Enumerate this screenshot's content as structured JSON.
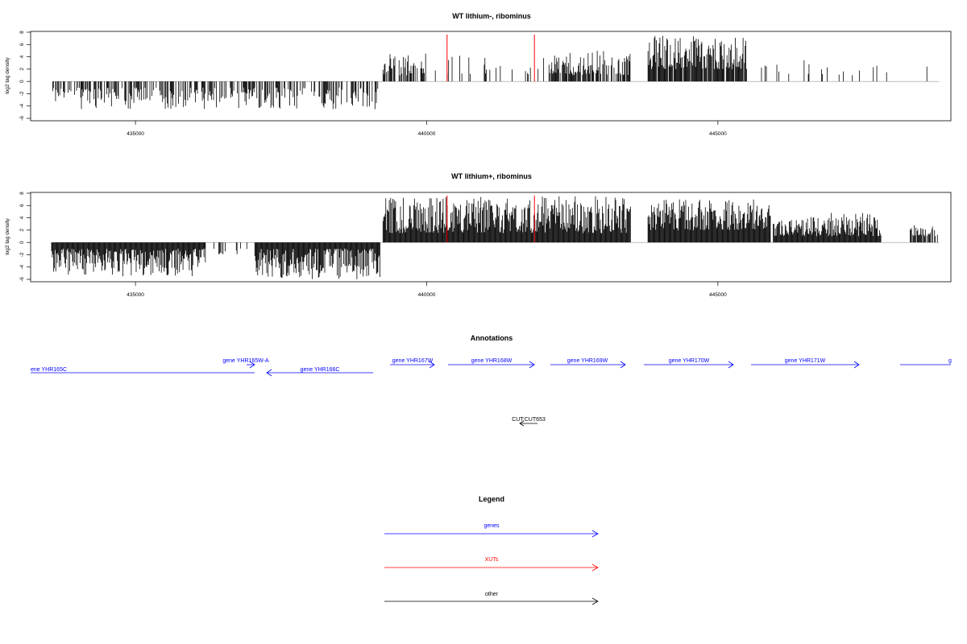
{
  "colors": {
    "gene": "#0000ff",
    "xut": "#ff0000",
    "other": "#000000",
    "baseline": "#999999"
  },
  "chart_data": [
    {
      "type": "bar",
      "title": "WT lithium-, ribominus",
      "ylabel": "log2 tag density",
      "ylim": [
        -6,
        8
      ],
      "yticks": [
        "8",
        "6",
        "4",
        "2",
        "0",
        "-2",
        "-4",
        "-6"
      ],
      "xlim": [
        433200,
        449000
      ],
      "xticks": [
        "435000",
        "440000",
        "445000"
      ],
      "regions": [
        {
          "x": [
            433580,
            439180
          ],
          "sign": -1,
          "low": 1.0,
          "high": 4.5,
          "density": 0.55,
          "seed": 11
        },
        {
          "x": [
            439250,
            440000
          ],
          "sign": 1,
          "low": 1.0,
          "high": 4.6,
          "density": 0.55,
          "seed": 12
        },
        {
          "x": [
            440100,
            442050
          ],
          "sign": 1,
          "low": 1.0,
          "high": 4.5,
          "density": 0.12,
          "seed": 13
        },
        {
          "x": [
            442100,
            443500
          ],
          "sign": 1,
          "low": 1.0,
          "high": 5.0,
          "density": 0.7,
          "seed": 14
        },
        {
          "x": [
            443800,
            445500
          ],
          "sign": 1,
          "low": 2.0,
          "high": 7.5,
          "density": 0.9,
          "seed": 15
        },
        {
          "x": [
            445700,
            447900
          ],
          "sign": 1,
          "low": 1.0,
          "high": 3.6,
          "density": 0.12,
          "seed": 16
        },
        {
          "x": [
            448300,
            448700
          ],
          "sign": 1,
          "low": 2.0,
          "high": 2.6,
          "density": 0.05,
          "seed": 17
        }
      ],
      "highlight_x": [
        440350,
        441850
      ]
    },
    {
      "type": "bar",
      "title": "WT lithium+, ribominus",
      "ylabel": "log2 tag density",
      "ylim": [
        -6,
        8
      ],
      "yticks": [
        "8",
        "6",
        "4",
        "2",
        "0",
        "-2",
        "-4",
        "-6"
      ],
      "xlim": [
        433200,
        449000
      ],
      "xticks": [
        "435000",
        "440000",
        "445000"
      ],
      "regions": [
        {
          "x": [
            433560,
            436200
          ],
          "sign": -1,
          "low": 1.0,
          "high": 5.5,
          "density": 1.0,
          "seed": 21
        },
        {
          "x": [
            436300,
            437000
          ],
          "sign": -1,
          "low": 1.0,
          "high": 2.2,
          "density": 0.2,
          "seed": 22
        },
        {
          "x": [
            437050,
            439200
          ],
          "sign": -1,
          "low": 1.0,
          "high": 6.0,
          "density": 1.0,
          "seed": 23
        },
        {
          "x": [
            439250,
            443500
          ],
          "sign": 1,
          "low": 1.5,
          "high": 7.5,
          "density": 1.0,
          "seed": 24
        },
        {
          "x": [
            443800,
            445900
          ],
          "sign": 1,
          "low": 2.0,
          "high": 7.0,
          "density": 1.0,
          "seed": 25
        },
        {
          "x": [
            445950,
            447800
          ],
          "sign": 1,
          "low": 1.0,
          "high": 4.8,
          "density": 1.0,
          "seed": 26
        },
        {
          "x": [
            448300,
            448800
          ],
          "sign": 1,
          "low": 1.0,
          "high": 2.8,
          "density": 0.6,
          "seed": 27
        }
      ],
      "highlight_x": [
        440350,
        441850
      ]
    }
  ],
  "annotations": {
    "title": "Annotations",
    "features": [
      {
        "label": "ene YHR165C",
        "type": "gene",
        "strand": "-"
      },
      {
        "label": "gene YHR165W-A",
        "type": "gene",
        "strand": "+"
      },
      {
        "label": "gene YHR166C",
        "type": "gene",
        "strand": "-"
      },
      {
        "label": "gene YHR167W",
        "type": "gene",
        "strand": "+"
      },
      {
        "label": "gene YHR168W",
        "type": "gene",
        "strand": "+"
      },
      {
        "label": "gene YHR169W",
        "type": "gene",
        "strand": "+"
      },
      {
        "label": "gene YHR170W",
        "type": "gene",
        "strand": "+"
      },
      {
        "label": "gene YHR171W",
        "type": "gene",
        "strand": "+"
      },
      {
        "label": "g",
        "type": "gene",
        "strand": "+"
      },
      {
        "label": "CUT:CUT653",
        "type": "other",
        "strand": "-"
      }
    ]
  },
  "legend": {
    "title": "Legend",
    "items": [
      {
        "label": "genes",
        "type": "gene"
      },
      {
        "label": "XUTs",
        "type": "xut"
      },
      {
        "label": "other",
        "type": "other"
      }
    ]
  }
}
